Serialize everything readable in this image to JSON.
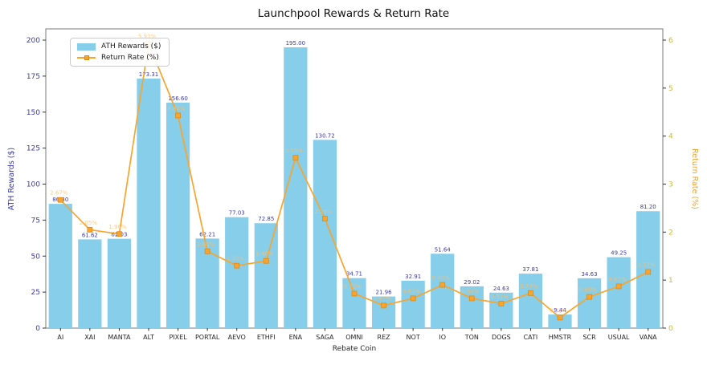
{
  "title": "Launchpool Rewards & Return Rate",
  "legend": {
    "bar_label": "ATH Rewards ($)",
    "line_label": "Return Rate (%)"
  },
  "axes": {
    "x_title": "Rebate Coin",
    "y_left_title": "ATH Rewards ($)",
    "y_right_title": "Return Rate (%)"
  },
  "colors": {
    "bar_fill": "#87CEEB",
    "bar_value_label": "#3A3AA8",
    "left_axis_text": "#3A3AA8",
    "line": "#F9A42C",
    "marker_edge": "#DE8A18",
    "rate_label": "#FFBE66",
    "right_tick_text": "#C9B833",
    "right_axis_title": "#F0A330",
    "spine": "#7a7a7a",
    "x_tick_text": "#262626"
  },
  "chart_data": {
    "type": "bar",
    "subtype": "bar-with-line-overlay",
    "title": "Launchpool Rewards & Return Rate",
    "xlabel": "Rebate Coin",
    "ylabel_left": "ATH Rewards ($)",
    "ylabel_right": "Return Rate (%)",
    "categories": [
      "AI",
      "XAI",
      "MANTA",
      "ALT",
      "PIXEL",
      "PORTAL",
      "AEVO",
      "ETHFI",
      "ENA",
      "SAGA",
      "OMNI",
      "REZ",
      "NOT",
      "IO",
      "TON",
      "DOGS",
      "CATI",
      "HMSTR",
      "SCR",
      "USUAL",
      "VANA"
    ],
    "series": [
      {
        "name": "ATH Rewards ($)",
        "type": "bar",
        "axis": "left",
        "values": [
          86.3,
          61.62,
          62.03,
          173.31,
          156.6,
          62.21,
          77.03,
          72.85,
          195.0,
          130.72,
          34.71,
          21.96,
          32.91,
          51.64,
          29.02,
          24.63,
          37.81,
          9.44,
          34.63,
          49.25,
          81.2
        ]
      },
      {
        "name": "Return Rate (%)",
        "type": "line",
        "axis": "right",
        "values": [
          2.67,
          2.05,
          1.96,
          5.93,
          4.43,
          1.6,
          1.3,
          1.4,
          3.55,
          2.28,
          0.72,
          0.47,
          0.62,
          0.9,
          0.62,
          0.51,
          0.73,
          0.22,
          0.65,
          0.87,
          1.17
        ]
      }
    ],
    "ylim_left": [
      0,
      200
    ],
    "yticks_left": [
      0,
      25,
      50,
      75,
      100,
      125,
      150,
      175,
      200
    ],
    "ylim_right": [
      0,
      6
    ],
    "yticks_right": [
      0,
      1,
      2,
      3,
      4,
      5,
      6
    ],
    "grid": false,
    "legend_position": "upper-left",
    "value_labels": "on-bars-and-line"
  }
}
